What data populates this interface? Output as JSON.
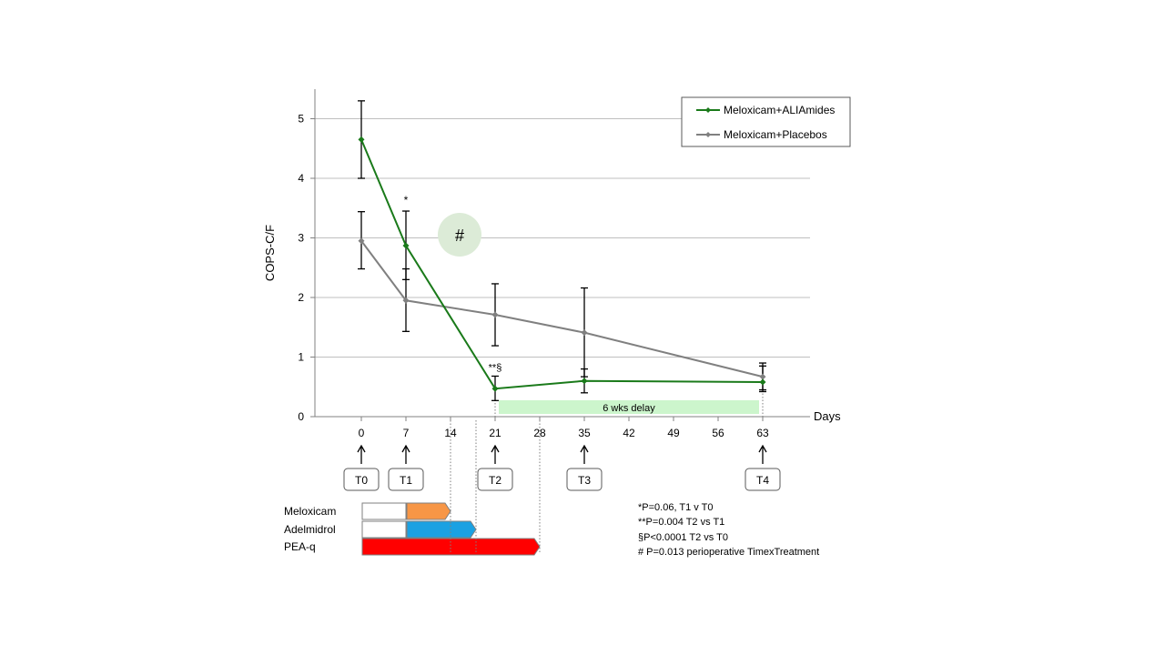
{
  "chart_data": {
    "type": "line",
    "title": "",
    "xlabel": "Days",
    "ylabel": "COPS-C/F",
    "xlim": [
      -7,
      70
    ],
    "ylim": [
      0,
      5.5
    ],
    "x_ticks": [
      0,
      7,
      14,
      21,
      28,
      35,
      42,
      49,
      56,
      63
    ],
    "y_ticks": [
      0,
      1,
      2,
      3,
      4,
      5
    ],
    "grid": "horizontal",
    "legend_position": "top-right",
    "series": [
      {
        "name": "Meloxicam+ALIAmides",
        "color": "#1a7a1a",
        "x": [
          0,
          7,
          21,
          35,
          63
        ],
        "y": [
          4.65,
          2.87,
          0.47,
          0.6,
          0.58
        ],
        "err_low": [
          4.0,
          2.3,
          0.27,
          0.4,
          0.42
        ],
        "err_high": [
          5.3,
          3.45,
          0.68,
          0.8,
          0.85
        ]
      },
      {
        "name": "Meloxicam+Placebos",
        "color": "#808080",
        "x": [
          0,
          7,
          21,
          35,
          63
        ],
        "y": [
          2.95,
          1.95,
          1.71,
          1.41,
          0.67
        ],
        "err_low": [
          2.48,
          1.43,
          1.19,
          0.67,
          0.45
        ],
        "err_high": [
          3.44,
          2.48,
          2.23,
          2.16,
          0.9
        ]
      }
    ],
    "annotations": {
      "t1_marker": "*",
      "t2_marker": "**§",
      "hash_marker": "#",
      "delay_label": "6 wks delay",
      "delay_range": [
        21,
        63
      ]
    },
    "timepoints": [
      {
        "label": "T0",
        "day": 0
      },
      {
        "label": "T1",
        "day": 7
      },
      {
        "label": "T2",
        "day": 21
      },
      {
        "label": "T3",
        "day": 35
      },
      {
        "label": "T4",
        "day": 63
      }
    ],
    "treatments": [
      {
        "label": "Meloxicam",
        "segments": [
          {
            "from": 0,
            "to": 7,
            "color": "#ffffff"
          },
          {
            "from": 7,
            "to": 14,
            "color": "#f79646"
          }
        ]
      },
      {
        "label": "Adelmidrol",
        "segments": [
          {
            "from": 0,
            "to": 7,
            "color": "#ffffff"
          },
          {
            "from": 7,
            "to": 18,
            "color": "#1ba1e2"
          }
        ]
      },
      {
        "label": "PEA-q",
        "segments": [
          {
            "from": 0,
            "to": 28,
            "color": "#ff0000"
          }
        ]
      }
    ],
    "treatment_end_lines": [
      14,
      18,
      28
    ],
    "footnotes": [
      "*P=0.06, T1 v T0",
      "**P=0.004 T2 vs T1",
      "§P<0.0001 T2 vs T0",
      "# P=0.013 perioperative TimexTreatment"
    ]
  }
}
